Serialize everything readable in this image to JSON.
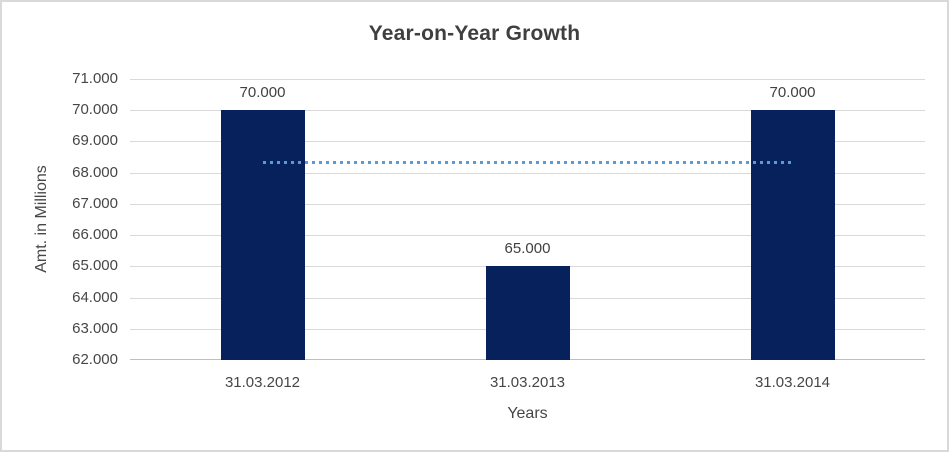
{
  "chart_data": {
    "type": "bar",
    "title": "Year-on-Year Growth",
    "xlabel": "Years",
    "ylabel": "Amt. in Millions",
    "categories": [
      "31.03.2012",
      "31.03.2013",
      "31.03.2014"
    ],
    "series": [
      {
        "values": [
          70000,
          65000,
          70000
        ],
        "data_labels": [
          "70.000",
          "65.000",
          "70.000"
        ],
        "color": "#07215c"
      }
    ],
    "ylim": [
      62000,
      71000
    ],
    "ytick_step": 1000,
    "yticks": [
      {
        "value": 71000,
        "label": "71.000"
      },
      {
        "value": 70000,
        "label": "70.000"
      },
      {
        "value": 69000,
        "label": "69.000"
      },
      {
        "value": 68000,
        "label": "68.000"
      },
      {
        "value": 67000,
        "label": "67.000"
      },
      {
        "value": 66000,
        "label": "66.000"
      },
      {
        "value": 65000,
        "label": "65.000"
      },
      {
        "value": 64000,
        "label": "64.000"
      },
      {
        "value": 63000,
        "label": "63.000"
      },
      {
        "value": 62000,
        "label": "62.000"
      }
    ],
    "grid": true,
    "gridline_color": "#d9d9d9",
    "axis_line_color": "#bfbfbf",
    "legend": false,
    "trendline": {
      "type": "average",
      "value": 68333.33,
      "color": "#5b9bd5",
      "style": "dotted",
      "span": "first-bar-center-to-last-bar-center"
    },
    "frame": {
      "background": "#ffffff",
      "border_color": "#d9d9d9",
      "title_color": "#3f3f3f",
      "text_color": "#464646"
    }
  }
}
